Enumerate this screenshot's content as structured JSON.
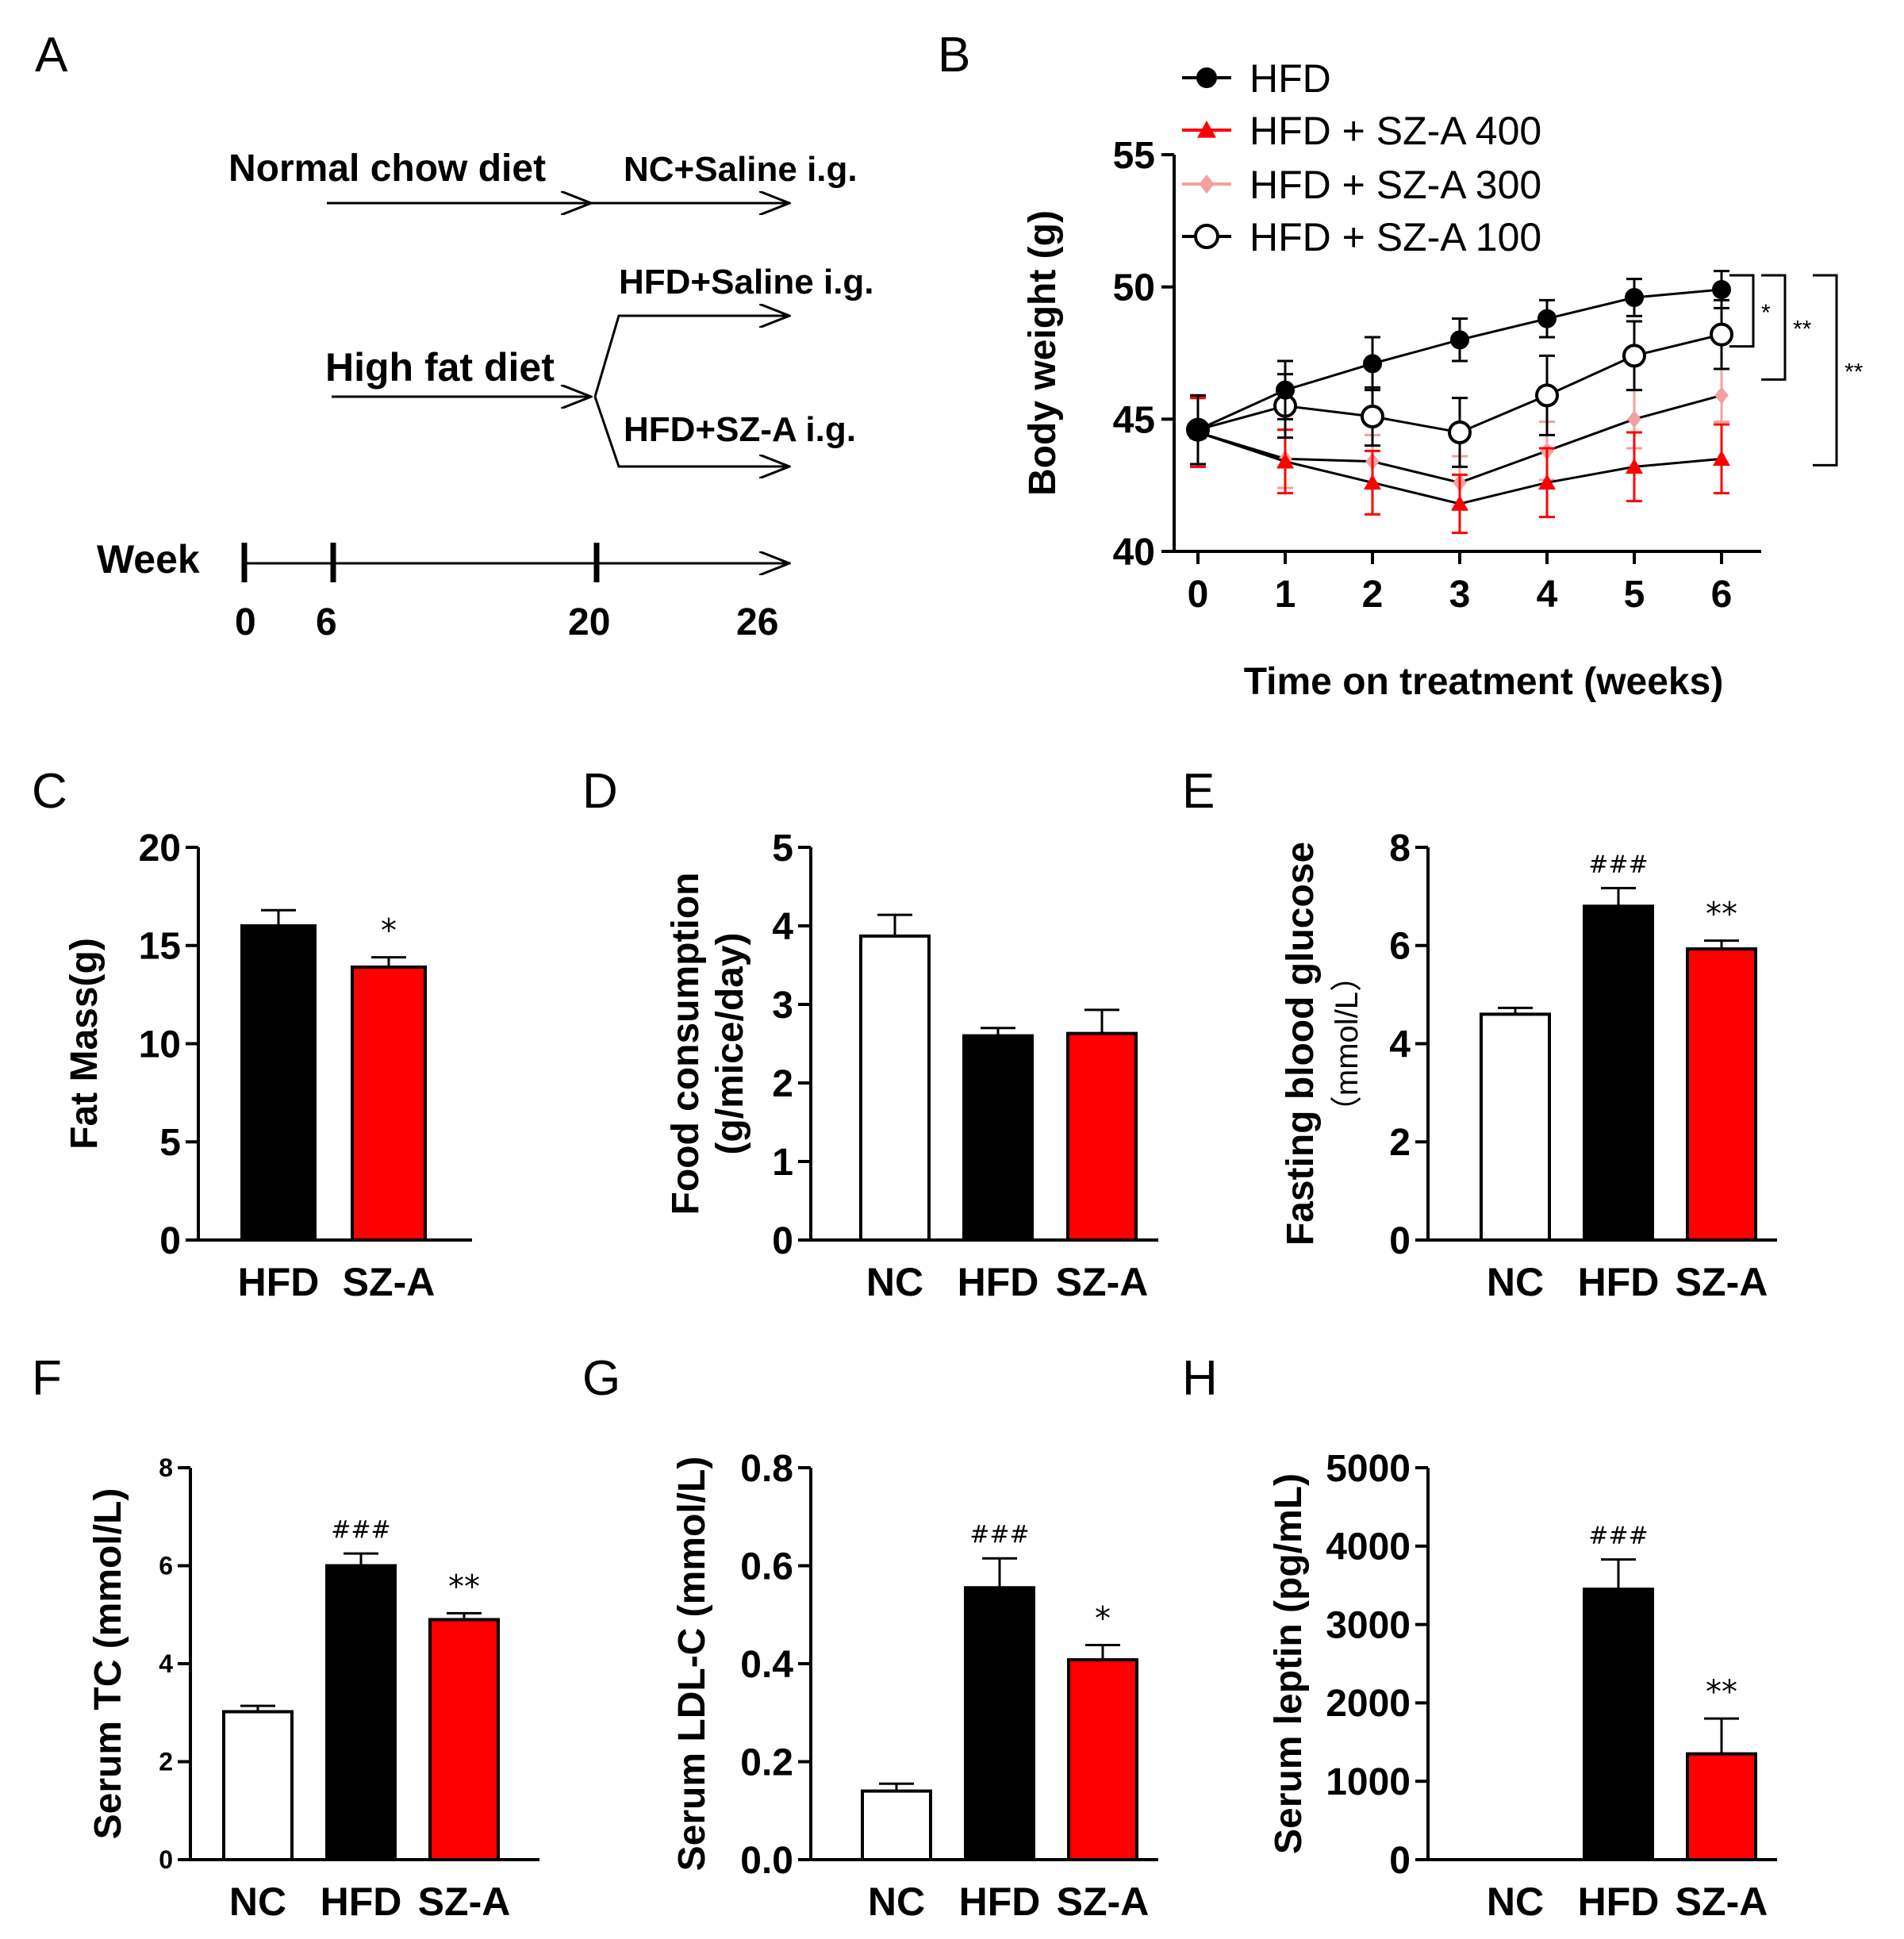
{
  "panel_labels": [
    "A",
    "B",
    "C",
    "D",
    "E",
    "F",
    "G",
    "H"
  ],
  "scheme": {
    "top_label": "Normal chow diet",
    "top_outcome": "NC+Saline i.g.",
    "mid_label": "High fat diet",
    "upper_branch": "HFD+Saline i.g.",
    "lower_branch": "HFD+SZ-A i.g.",
    "week_label": "Week",
    "weeks": [
      "0",
      "6",
      "20",
      "26"
    ]
  },
  "colors": {
    "black": "#000000",
    "red": "#ff0000",
    "pink": "#f4a0a0",
    "white": "#ffffff"
  },
  "chart_data": [
    {
      "panel": "B",
      "type": "line",
      "xlabel": "Time on treatment (weeks)",
      "ylabel": "Body weight (g)",
      "x": [
        0,
        1,
        2,
        3,
        4,
        5,
        6
      ],
      "ylim": [
        40,
        55
      ],
      "yticks": [
        "40",
        "45",
        "50",
        "55"
      ],
      "xticks": [
        "0",
        "1",
        "2",
        "3",
        "4",
        "5",
        "6"
      ],
      "legend_position": "top",
      "series": [
        {
          "name": "HFD",
          "marker": "filled-circle",
          "color": "#000000",
          "values": [
            44.6,
            46.1,
            47.1,
            48.0,
            48.8,
            49.6,
            49.9
          ],
          "errors": [
            1.3,
            1.1,
            1.0,
            0.8,
            0.7,
            0.7,
            0.7
          ]
        },
        {
          "name": "HFD + SZ-A 400",
          "marker": "filled-triangle",
          "color": "#ff0000",
          "values": [
            44.5,
            43.4,
            42.6,
            41.8,
            42.6,
            43.2,
            43.5
          ],
          "errors": [
            1.3,
            1.2,
            1.2,
            1.1,
            1.3,
            1.3,
            1.3
          ]
        },
        {
          "name": "HFD + SZ-A 300",
          "marker": "filled-diamond",
          "color": "#f4a0a0",
          "values": [
            44.5,
            43.5,
            43.4,
            42.6,
            43.8,
            45.0,
            45.9
          ],
          "errors": [
            1.3,
            1.1,
            1.0,
            1.0,
            1.1,
            1.1,
            1.0
          ]
        },
        {
          "name": "HFD + SZ-A 100",
          "marker": "open-circle",
          "color": "#000000",
          "values": [
            44.6,
            45.5,
            45.1,
            44.5,
            45.9,
            47.4,
            48.2
          ],
          "errors": [
            1.3,
            1.2,
            1.1,
            1.3,
            1.5,
            1.3,
            1.3
          ]
        }
      ],
      "significance": [
        "*",
        "**",
        "**"
      ]
    },
    {
      "panel": "C",
      "type": "bar",
      "ylabel": "Fat Mass(g)",
      "categories": [
        "HFD",
        "SZ-A"
      ],
      "values": [
        16.0,
        13.9
      ],
      "errors": [
        0.8,
        0.5
      ],
      "colors": [
        "#000000",
        "#ff0000"
      ],
      "ylim": [
        0,
        20
      ],
      "yticks": [
        "0",
        "5",
        "10",
        "15",
        "20"
      ],
      "annotations": [
        "",
        "*"
      ]
    },
    {
      "panel": "D",
      "type": "bar",
      "ylabel": [
        "Food consumption",
        "(g/mice/day)"
      ],
      "categories": [
        "NC",
        "HFD",
        "SZ-A"
      ],
      "values": [
        3.87,
        2.6,
        2.63
      ],
      "errors": [
        0.27,
        0.1,
        0.3
      ],
      "colors": [
        "#ffffff",
        "#000000",
        "#ff0000"
      ],
      "ylim": [
        0,
        5
      ],
      "yticks": [
        "0",
        "1",
        "2",
        "3",
        "4",
        "5"
      ],
      "annotations": [
        "",
        "",
        ""
      ]
    },
    {
      "panel": "E",
      "type": "bar",
      "ylabel": [
        "Fasting blood glucose",
        "（mmol/L）"
      ],
      "categories": [
        "NC",
        "HFD",
        "SZ-A"
      ],
      "values": [
        4.6,
        6.8,
        5.93
      ],
      "errors": [
        0.13,
        0.37,
        0.17
      ],
      "colors": [
        "#ffffff",
        "#000000",
        "#ff0000"
      ],
      "ylim": [
        0,
        8
      ],
      "yticks": [
        "0",
        "2",
        "4",
        "6",
        "8"
      ],
      "annotations": [
        "",
        "###",
        "**"
      ]
    },
    {
      "panel": "F",
      "type": "bar",
      "ylabel": "Serum TC (mmol/L)",
      "categories": [
        "NC",
        "HFD",
        "SZ-A"
      ],
      "values": [
        3.02,
        6.0,
        4.9
      ],
      "errors": [
        0.12,
        0.25,
        0.13
      ],
      "colors": [
        "#ffffff",
        "#000000",
        "#ff0000"
      ],
      "ylim": [
        0,
        8
      ],
      "yticks": [
        "0",
        "2",
        "4",
        "6",
        "8"
      ],
      "annotations": [
        "",
        "###",
        "**"
      ]
    },
    {
      "panel": "G",
      "type": "bar",
      "ylabel": "Serum LDL-C (mmol/L)",
      "categories": [
        "NC",
        "HFD",
        "SZ-A"
      ],
      "values": [
        0.14,
        0.555,
        0.408
      ],
      "errors": [
        0.015,
        0.06,
        0.03
      ],
      "colors": [
        "#ffffff",
        "#000000",
        "#ff0000"
      ],
      "ylim": [
        0,
        0.8
      ],
      "yticks": [
        "0.0",
        "0.2",
        "0.4",
        "0.6",
        "0.8"
      ],
      "annotations": [
        "",
        "###",
        "*"
      ]
    },
    {
      "panel": "H",
      "type": "bar",
      "ylabel": "Serum leptin (pg/mL)",
      "categories": [
        "NC",
        "HFD",
        "SZ-A"
      ],
      "values": [
        0,
        3450,
        1350
      ],
      "errors": [
        0,
        380,
        450
      ],
      "colors": [
        "#ffffff",
        "#000000",
        "#ff0000"
      ],
      "ylim": [
        0,
        5000
      ],
      "yticks": [
        "0",
        "1000",
        "2000",
        "3000",
        "4000",
        "5000"
      ],
      "annotations": [
        "",
        "###",
        "**"
      ]
    }
  ]
}
